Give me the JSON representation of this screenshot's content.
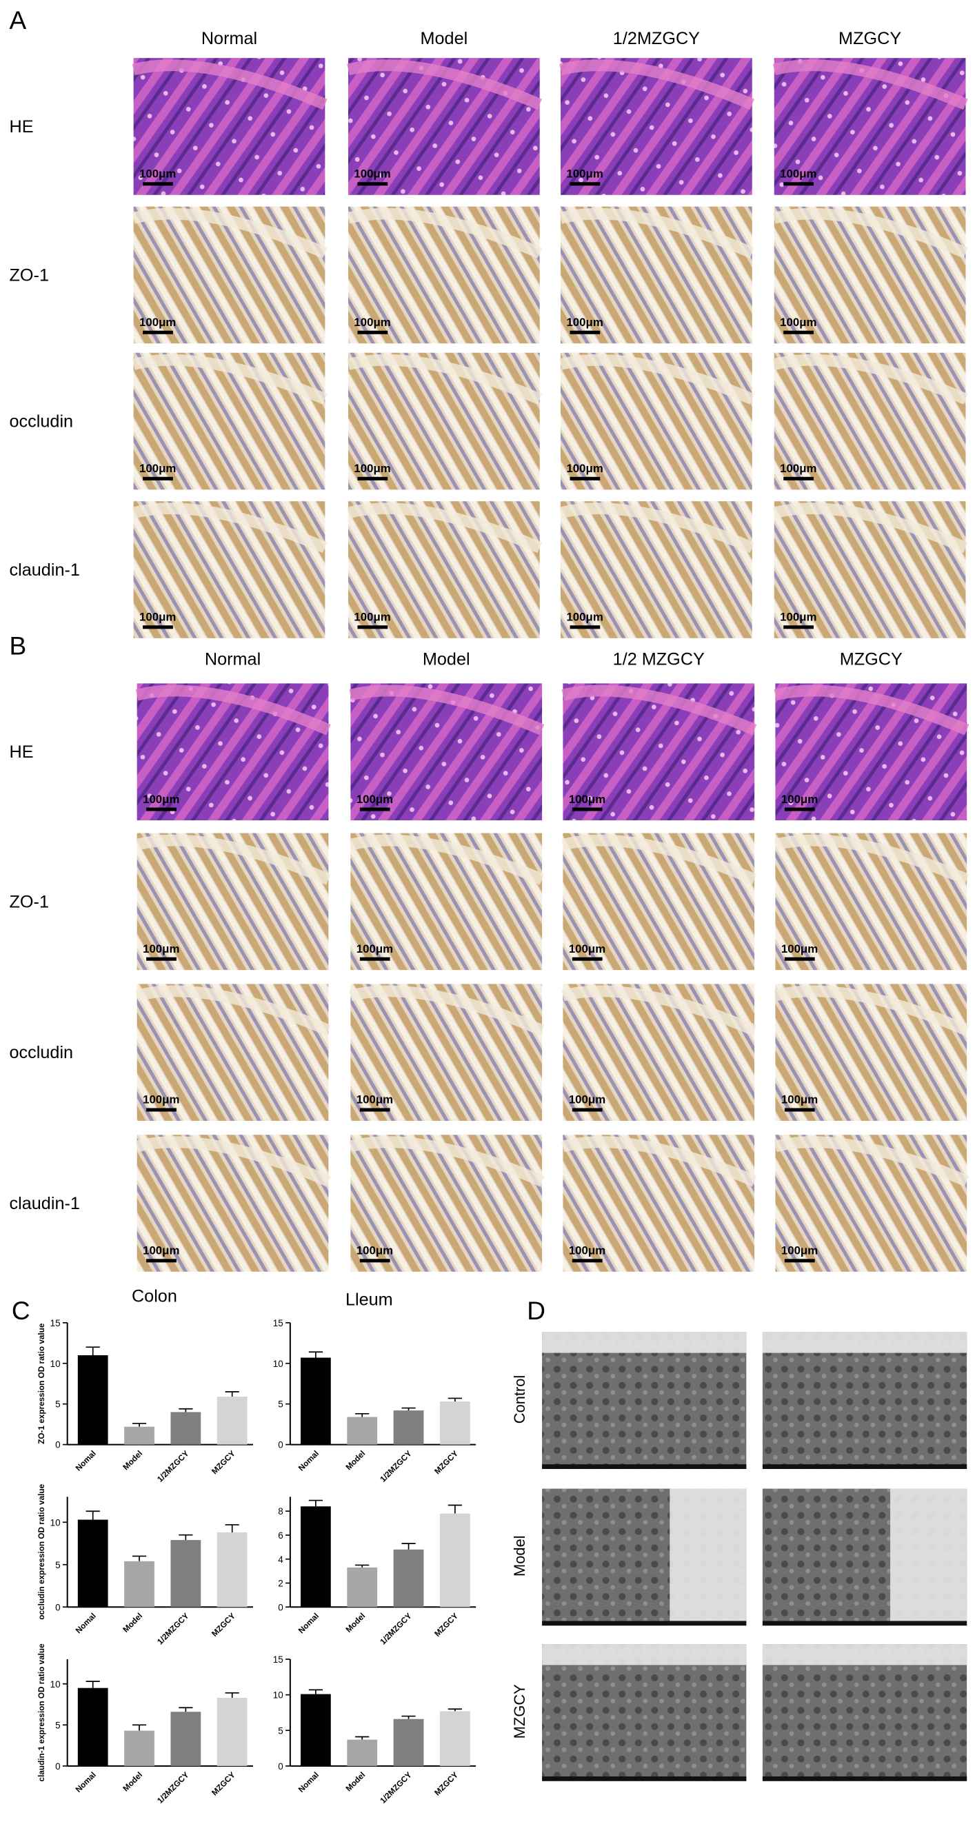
{
  "panel_a": {
    "label": "A",
    "columns": [
      "Normal",
      "Model",
      "1/2MZGCY",
      "MZGCY"
    ],
    "rows": [
      "HE",
      "ZO-1",
      "occludin",
      "claudin-1"
    ],
    "scale_bar": "100μm"
  },
  "panel_b": {
    "label": "B",
    "columns": [
      "Normal",
      "Model",
      "1/2 MZGCY",
      "MZGCY"
    ],
    "rows": [
      "HE",
      "ZO-1",
      "occludin",
      "claudin-1"
    ],
    "scale_bar": "100μm"
  },
  "panel_c": {
    "label": "C",
    "columns": [
      "Colon",
      "Lleum"
    ]
  },
  "panel_d": {
    "label": "D",
    "rows": [
      "Control",
      "Model",
      "MZGCY"
    ]
  },
  "chart_data": [
    {
      "type": "bar",
      "ylabel": "ZO-1 expression OD ratio value",
      "categories": [
        "Nomal",
        "Model",
        "1/2MZGCY",
        "MZGCY"
      ],
      "values": [
        11,
        2.2,
        4.0,
        5.9
      ],
      "errors": [
        1.0,
        0.4,
        0.4,
        0.6
      ],
      "colors": [
        "#000000",
        "#a6a6a6",
        "#7f7f7f",
        "#d4d4d4"
      ],
      "ylim": [
        0,
        15
      ],
      "yticks": [
        0,
        5,
        10,
        15
      ]
    },
    {
      "type": "bar",
      "categories": [
        "Nomal",
        "Model",
        "1/2MZGCY",
        "MZGCY"
      ],
      "values": [
        10.7,
        3.4,
        4.2,
        5.3
      ],
      "errors": [
        0.7,
        0.4,
        0.3,
        0.4
      ],
      "colors": [
        "#000000",
        "#a6a6a6",
        "#7f7f7f",
        "#d4d4d4"
      ],
      "ylim": [
        0,
        15
      ],
      "yticks": [
        0,
        5,
        10,
        15
      ]
    },
    {
      "type": "bar",
      "ylabel": "occludin expression OD ratio value",
      "categories": [
        "Nomal",
        "Model",
        "1/2MZGCY",
        "MZGCY"
      ],
      "values": [
        10.3,
        5.4,
        7.9,
        8.8
      ],
      "errors": [
        1.0,
        0.6,
        0.6,
        0.9
      ],
      "colors": [
        "#000000",
        "#a6a6a6",
        "#7f7f7f",
        "#d4d4d4"
      ],
      "ylim": [
        0,
        13
      ],
      "yticks": [
        0,
        5,
        10
      ]
    },
    {
      "type": "bar",
      "categories": [
        "Nomal",
        "Model",
        "1/2MZGCY",
        "MZGCY"
      ],
      "values": [
        8.4,
        3.3,
        4.8,
        7.8
      ],
      "errors": [
        0.5,
        0.2,
        0.5,
        0.7
      ],
      "colors": [
        "#000000",
        "#a6a6a6",
        "#7f7f7f",
        "#d4d4d4"
      ],
      "ylim": [
        0,
        9.2
      ],
      "yticks": [
        0,
        2,
        4,
        6,
        8
      ]
    },
    {
      "type": "bar",
      "ylabel": "claudin-1 expression OD ratio value",
      "categories": [
        "Nomal",
        "Model",
        "1/2MZGCY",
        "MZGCY"
      ],
      "values": [
        9.5,
        4.3,
        6.6,
        8.3
      ],
      "errors": [
        0.8,
        0.7,
        0.5,
        0.6
      ],
      "colors": [
        "#000000",
        "#a6a6a6",
        "#7f7f7f",
        "#d4d4d4"
      ],
      "ylim": [
        0,
        13
      ],
      "yticks": [
        0,
        5,
        10
      ]
    },
    {
      "type": "bar",
      "categories": [
        "Nomal",
        "Model",
        "1/2MZGCY",
        "MZGCY"
      ],
      "values": [
        10.1,
        3.7,
        6.6,
        7.7
      ],
      "errors": [
        0.6,
        0.4,
        0.4,
        0.3
      ],
      "colors": [
        "#000000",
        "#a6a6a6",
        "#7f7f7f",
        "#d4d4d4"
      ],
      "ylim": [
        0,
        15
      ],
      "yticks": [
        0,
        5,
        10,
        15
      ]
    }
  ]
}
